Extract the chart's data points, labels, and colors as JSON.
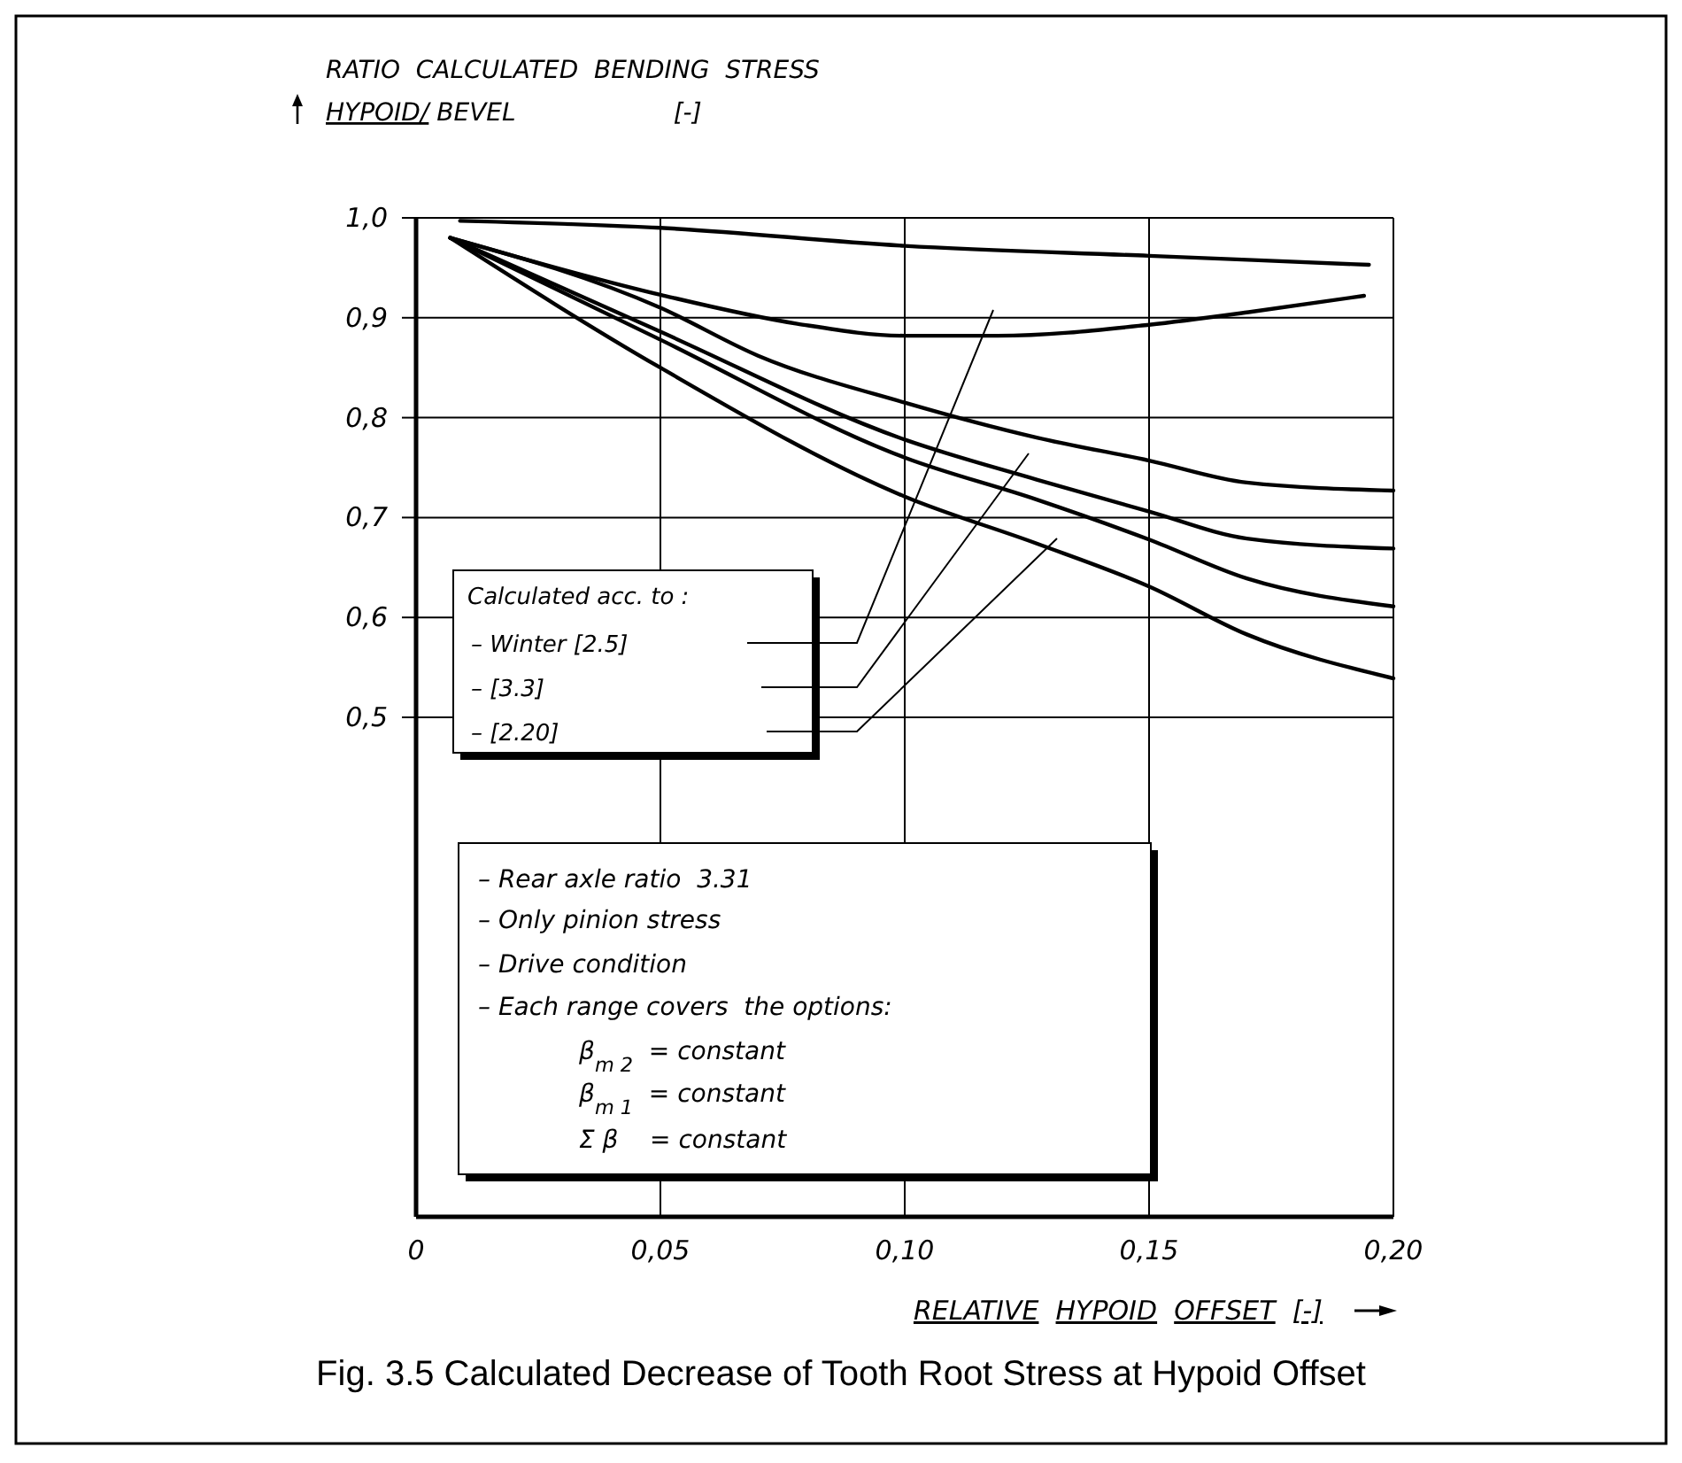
{
  "chart_data": {
    "type": "line",
    "title": "Fig. 3.5 Calculated Decrease of Tooth Root Stress at Hypoid Offset",
    "xlabel": "RELATIVE  HYPOID  OFFSET  [-]",
    "ylabel": "RATIO  CALCULATED  BENDING  STRESS\nHYPOID/ BEVEL                    [-]",
    "xlim": [
      0,
      0.2
    ],
    "ylim": [
      0,
      1.0
    ],
    "xticks": [
      {
        "value": 0,
        "label": "0"
      },
      {
        "value": 0.05,
        "label": "0,05"
      },
      {
        "value": 0.1,
        "label": "0,10"
      },
      {
        "value": 0.15,
        "label": "0,15"
      },
      {
        "value": 0.2,
        "label": "0,20"
      }
    ],
    "yticks": [
      {
        "value": 0.5,
        "label": "0,5"
      },
      {
        "value": 0.6,
        "label": "0,6"
      },
      {
        "value": 0.7,
        "label": "0,7"
      },
      {
        "value": 0.8,
        "label": "0,8"
      },
      {
        "value": 0.9,
        "label": "0,9"
      },
      {
        "value": 1.0,
        "label": "1,0"
      }
    ],
    "grid": true,
    "series": [
      {
        "color": "#000000",
        "x": [
          0.009,
          0.05,
          0.1,
          0.15,
          0.195
        ],
        "values": [
          0.997,
          0.99,
          0.972,
          0.962,
          0.953
        ]
      },
      {
        "color": "#000000",
        "x": [
          0.007,
          0.05,
          0.078,
          0.1,
          0.119,
          0.15,
          0.171,
          0.194
        ],
        "values": [
          0.98,
          0.923,
          0.894,
          0.882,
          0.882,
          0.893,
          0.906,
          0.922
        ]
      },
      {
        "color": "#000000",
        "x": [
          0.007,
          0.05,
          0.07,
          0.1,
          0.127,
          0.15,
          0.17,
          0.2
        ],
        "values": [
          0.98,
          0.91,
          0.862,
          0.815,
          0.78,
          0.757,
          0.735,
          0.727
        ]
      },
      {
        "color": "#000000",
        "x": [
          0.007,
          0.05,
          0.1,
          0.127,
          0.15,
          0.17,
          0.2
        ],
        "values": [
          0.98,
          0.886,
          0.778,
          0.738,
          0.706,
          0.679,
          0.669
        ]
      },
      {
        "color": "#000000",
        "x": [
          0.007,
          0.05,
          0.1,
          0.127,
          0.15,
          0.17,
          0.2
        ],
        "values": [
          0.98,
          0.878,
          0.76,
          0.718,
          0.678,
          0.639,
          0.611
        ]
      },
      {
        "color": "#000000",
        "x": [
          0.007,
          0.05,
          0.1,
          0.127,
          0.15,
          0.17,
          0.2
        ],
        "values": [
          0.98,
          0.85,
          0.721,
          0.674,
          0.631,
          0.583,
          0.539
        ]
      }
    ],
    "annotations": [
      "Calculated acc. to :",
      "– Winter [2.5]",
      "– [3.3]",
      "– [2.20]",
      "– Rear axle ratio  3.31",
      "– Only pinion stress",
      "– Drive condition",
      "– Each range covers  the options:",
      "β$_{m 2}$  = constant",
      "β$_{m 1}$  = constant",
      "Σ β    = constant"
    ]
  }
}
